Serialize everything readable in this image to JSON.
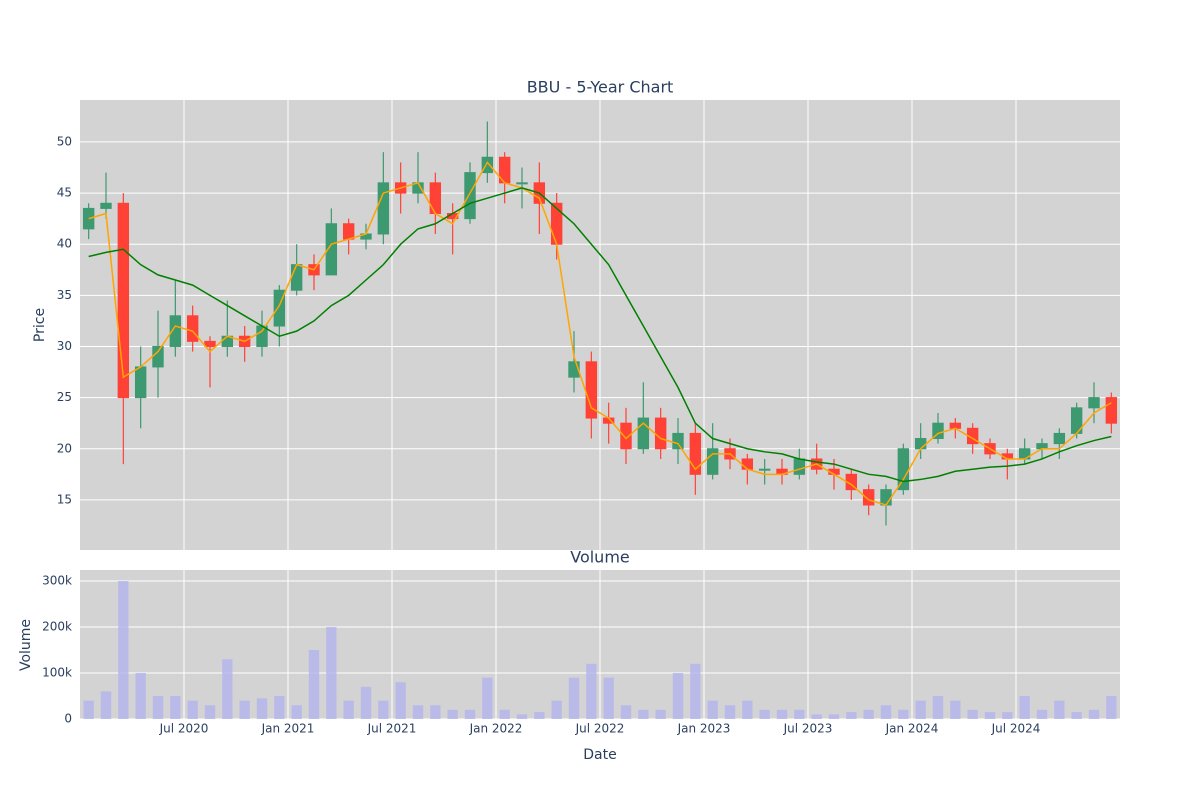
{
  "chart_data": [
    {
      "type": "candlestick",
      "title": "BBU - 5-Year Chart",
      "y_label": "Price",
      "x": [
        "2020-01",
        "2020-02",
        "2020-03",
        "2020-04",
        "2020-05",
        "2020-06",
        "2020-07",
        "2020-08",
        "2020-09",
        "2020-10",
        "2020-11",
        "2020-12",
        "2021-01",
        "2021-02",
        "2021-03",
        "2021-04",
        "2021-05",
        "2021-06",
        "2021-07",
        "2021-08",
        "2021-09",
        "2021-10",
        "2021-11",
        "2021-12",
        "2022-01",
        "2022-02",
        "2022-03",
        "2022-04",
        "2022-05",
        "2022-06",
        "2022-07",
        "2022-08",
        "2022-09",
        "2022-10",
        "2022-11",
        "2022-12",
        "2023-01",
        "2023-02",
        "2023-03",
        "2023-04",
        "2023-05",
        "2023-06",
        "2023-07",
        "2023-08",
        "2023-09",
        "2023-10",
        "2023-11",
        "2023-12",
        "2024-01",
        "2024-02",
        "2024-03",
        "2024-04",
        "2024-05",
        "2024-06",
        "2024-07",
        "2024-08",
        "2024-09",
        "2024-10",
        "2024-11",
        "2024-12"
      ],
      "open": [
        41.5,
        43.5,
        44,
        25,
        28,
        30,
        33,
        30.5,
        30,
        31,
        30,
        32,
        35.5,
        38,
        37,
        42,
        40.5,
        41,
        46,
        45,
        46,
        43,
        42.5,
        47,
        48.5,
        46,
        46,
        44,
        27,
        28.5,
        23,
        22.5,
        20,
        23,
        20,
        21.5,
        17.5,
        20,
        19,
        18,
        18,
        17.5,
        19,
        18,
        17.5,
        16,
        14.5,
        16,
        20,
        21,
        22.5,
        22,
        20.5,
        19.5,
        19,
        20,
        20.5,
        21.5,
        24,
        25
      ],
      "high": [
        44,
        47,
        45,
        30,
        33.5,
        36.5,
        34,
        31,
        34.5,
        32,
        33.5,
        36,
        40,
        39,
        43.5,
        42.5,
        42,
        49,
        48,
        49,
        47,
        44,
        48,
        52,
        49,
        47.5,
        48,
        45,
        31.5,
        29.5,
        24.5,
        24,
        26.5,
        24,
        23,
        22.5,
        22.5,
        21,
        19.5,
        19,
        19,
        20,
        20.5,
        19,
        18,
        16.5,
        16.5,
        20.5,
        22.5,
        23.5,
        23,
        22.5,
        21,
        20,
        21,
        21,
        22,
        24.5,
        26.5,
        25.5
      ],
      "low": [
        40.5,
        42.5,
        18.5,
        22,
        25,
        29,
        29.5,
        26,
        29,
        28.5,
        29,
        30,
        35,
        35.5,
        37,
        39,
        39.5,
        40,
        43,
        44,
        41,
        39,
        42,
        46,
        44,
        43.5,
        41,
        38.5,
        25.5,
        21,
        20.5,
        18.5,
        19.5,
        19,
        18.5,
        15.5,
        17,
        18,
        16.5,
        16.5,
        16.5,
        17,
        17.5,
        16,
        15,
        13.5,
        12.5,
        15.5,
        19,
        20.5,
        21,
        19.5,
        19,
        17,
        18.5,
        19,
        19,
        21,
        22.5,
        21.5
      ],
      "close": [
        43.5,
        44,
        25,
        28,
        30,
        33,
        30.5,
        30,
        31,
        30,
        32,
        35.5,
        38,
        37,
        42,
        40.5,
        41,
        46,
        45,
        46,
        43,
        42.5,
        47,
        48.5,
        46,
        46,
        44,
        40,
        28.5,
        23,
        22.5,
        20,
        23,
        20,
        21.5,
        17.5,
        20,
        19,
        18,
        18,
        17.5,
        19,
        18,
        17.5,
        16,
        14.5,
        16,
        20,
        21,
        22.5,
        22,
        20.5,
        19.5,
        19,
        20,
        20.5,
        21.5,
        24,
        25,
        22.5
      ],
      "increasing_color": "#3d9970",
      "decreasing_color": "#ff4136",
      "series": [
        {
          "color": "#ffa500",
          "values": [
            42.5,
            43,
            27,
            28,
            29.5,
            32,
            31.5,
            29.5,
            31,
            30.5,
            31.5,
            34,
            38,
            37.5,
            40,
            40.5,
            41,
            45,
            45.5,
            46,
            43,
            42,
            45,
            48,
            46,
            45.5,
            44.5,
            40,
            29,
            24,
            23,
            21,
            22.5,
            21,
            20.5,
            18,
            19.5,
            19.5,
            18,
            17.5,
            17.5,
            18,
            18.5,
            17.5,
            16.5,
            15,
            14.5,
            17,
            20,
            21.5,
            22,
            21,
            20,
            19,
            19,
            20,
            20,
            21.5,
            23.5,
            24.5
          ]
        },
        {
          "color": "#008000",
          "values": [
            38.8,
            39.2,
            39.5,
            38,
            37,
            36.5,
            36,
            35,
            34,
            33,
            32,
            31,
            31.5,
            32.5,
            34,
            35,
            36.5,
            38,
            40,
            41.5,
            42,
            43,
            44,
            44.5,
            45,
            45.5,
            45,
            43.5,
            42,
            40,
            38,
            35,
            32,
            29,
            26,
            22.5,
            21,
            20.5,
            20,
            19.7,
            19.5,
            19,
            18.7,
            18.5,
            18,
            17.5,
            17.3,
            16.8,
            17,
            17.3,
            17.8,
            18,
            18.2,
            18.3,
            18.5,
            19,
            19.7,
            20.3,
            20.8,
            21.2
          ]
        }
      ],
      "ylim": [
        10.1,
        54.1
      ],
      "yticks": [
        15,
        20,
        25,
        30,
        35,
        40,
        45,
        50
      ],
      "grid": true
    },
    {
      "type": "bar",
      "title": "Volume",
      "x_label": "Date",
      "y_label": "Volume",
      "x": [
        "2020-01",
        "2020-02",
        "2020-03",
        "2020-04",
        "2020-05",
        "2020-06",
        "2020-07",
        "2020-08",
        "2020-09",
        "2020-10",
        "2020-11",
        "2020-12",
        "2021-01",
        "2021-02",
        "2021-03",
        "2021-04",
        "2021-05",
        "2021-06",
        "2021-07",
        "2021-08",
        "2021-09",
        "2021-10",
        "2021-11",
        "2021-12",
        "2022-01",
        "2022-02",
        "2022-03",
        "2022-04",
        "2022-05",
        "2022-06",
        "2022-07",
        "2022-08",
        "2022-09",
        "2022-10",
        "2022-11",
        "2022-12",
        "2023-01",
        "2023-02",
        "2023-03",
        "2023-04",
        "2023-05",
        "2023-06",
        "2023-07",
        "2023-08",
        "2023-09",
        "2023-10",
        "2023-11",
        "2023-12",
        "2024-01",
        "2024-02",
        "2024-03",
        "2024-04",
        "2024-05",
        "2024-06",
        "2024-07",
        "2024-08",
        "2024-09",
        "2024-10",
        "2024-11",
        "2024-12"
      ],
      "values": [
        40000,
        60000,
        300000,
        100000,
        50000,
        50000,
        40000,
        30000,
        130000,
        40000,
        45000,
        50000,
        30000,
        150000,
        200000,
        40000,
        70000,
        40000,
        80000,
        30000,
        30000,
        20000,
        20000,
        90000,
        20000,
        10000,
        15000,
        40000,
        90000,
        120000,
        90000,
        30000,
        20000,
        20000,
        100000,
        120000,
        40000,
        30000,
        40000,
        20000,
        20000,
        20000,
        10000,
        10000,
        15000,
        20000,
        30000,
        20000,
        40000,
        50000,
        40000,
        20000,
        15000,
        15000,
        50000,
        20000,
        40000,
        15000,
        20000,
        50000
      ],
      "color": "#b4b4ee",
      "ylim": [
        0,
        324000
      ],
      "yticks": [
        0,
        {
          "value": 100000,
          "label": "100k"
        },
        {
          "value": 200000,
          "label": "200k"
        },
        {
          "value": 300000,
          "label": "300k"
        }
      ],
      "xticks": [
        {
          "value": "2020-07",
          "label": "Jul 2020"
        },
        {
          "value": "2021-01",
          "label": "Jan 2021"
        },
        {
          "value": "2021-07",
          "label": "Jul 2021"
        },
        {
          "value": "2022-01",
          "label": "Jan 2022"
        },
        {
          "value": "2022-07",
          "label": "Jul 2022"
        },
        {
          "value": "2023-01",
          "label": "Jan 2023"
        },
        {
          "value": "2023-07",
          "label": "Jul 2023"
        },
        {
          "value": "2024-01",
          "label": "Jan 2024"
        },
        {
          "value": "2024-07",
          "label": "Jul 2024"
        }
      ],
      "grid": true
    }
  ]
}
